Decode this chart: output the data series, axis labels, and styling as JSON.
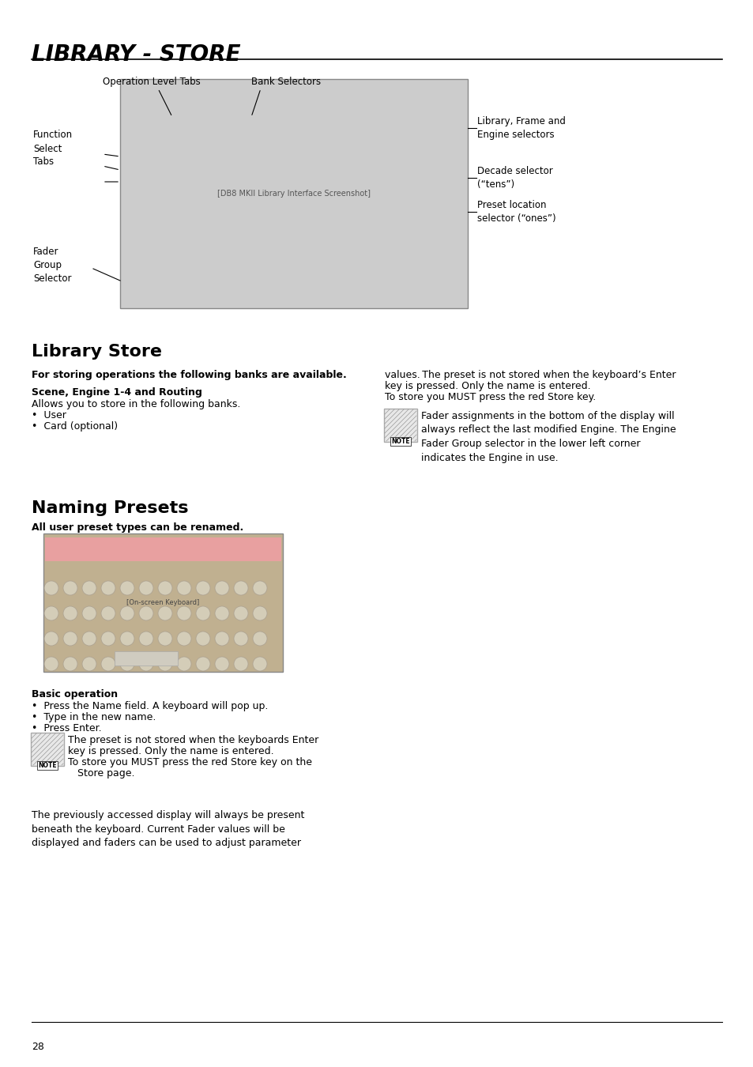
{
  "title": "LIBRARY - STORE",
  "bg_color": "#ffffff",
  "page_number": "28",
  "section1_heading": "Library Store",
  "section1_subheading": "For storing operations the following banks are available.",
  "section1_sub2": "Scene, Engine 1-4 and Routing",
  "section1_text1": "Allows you to store in the following banks.",
  "section1_bullets1": [
    "•  User",
    "•  Card (optional)"
  ],
  "section2_heading": "Naming Presets",
  "section2_subheading": "All user preset types can be renamed.",
  "basic_op_heading": "Basic operation",
  "basic_op_bullets": [
    "•  Press the Name field. A keyboard will pop up.",
    "•  Type in the new name.",
    "•  Press Enter."
  ],
  "right_col_line1": "values. The preset is not stored when the keyboard’s Enter",
  "right_col_line2": "key is pressed. Only the name is entered.",
  "right_col_line3": "To store you MUST press the red Store key.",
  "note3_text": "Fader assignments in the bottom of the display will\nalways reflect the last modified Engine. The Engine\nFader Group selector in the lower left corner\nindicates the Engine in use.",
  "note2_line1": "The preset is not stored when the keyboards Enter",
  "note2_line2": "key is pressed. Only the name is entered.",
  "note2_line3": "To store you MUST press the red Store key on the",
  "note2_line4": "Store page.",
  "final_text": "The previously accessed display will always be present\nbeneath the keyboard. Current Fader values will be\ndisplayed and faders can be used to adjust parameter",
  "diagram_labels": {
    "op_level_tabs": "Operation Level Tabs",
    "bank_selectors": "Bank Selectors",
    "lib_frame_engine": "Library, Frame and\nEngine selectors",
    "decade_selector": "Decade selector\n(“tens”)",
    "preset_location": "Preset location\nselector (“ones”)",
    "function_select": "Function\nSelect\nTabs",
    "fader_group": "Fader\nGroup\nSelector"
  }
}
